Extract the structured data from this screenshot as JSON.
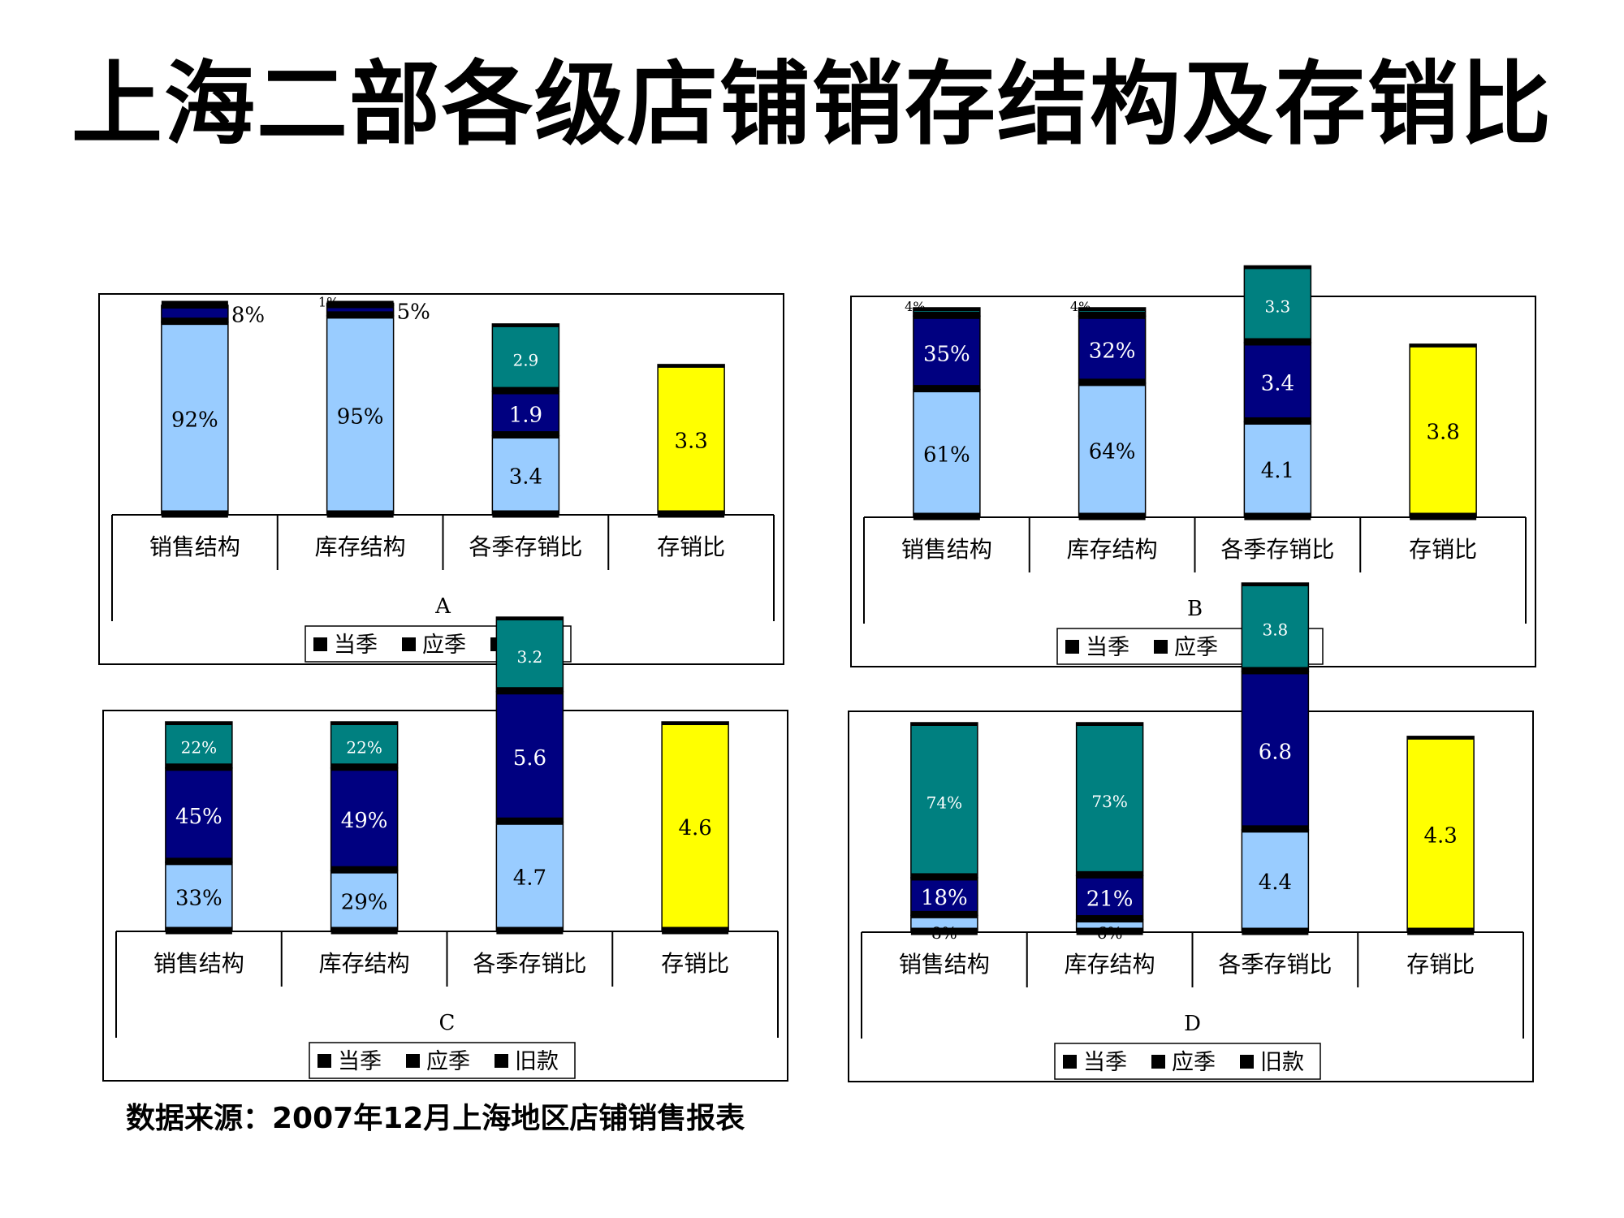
{
  "title": "上海二部各级店铺销存结构及存销比",
  "source_note": "数据来源：2007年12月上海地区店铺销售报表",
  "colors": {
    "current": "#99CCFF",
    "due": "#000080",
    "old": "#008080",
    "total": "#FFFF00",
    "divider": "#000000"
  },
  "legend_labels": [
    "当季",
    "应季",
    "旧款"
  ],
  "chart_data": [
    {
      "type": "bar",
      "stacked": true,
      "title": "A",
      "categories": [
        "销售结构",
        "库存结构",
        "各季存销比",
        "存销比"
      ],
      "series": [
        {
          "name": "当季",
          "values": [
            92,
            95,
            3.4,
            3.3
          ],
          "labels": [
            "92%",
            "95%",
            "3.4",
            "3.3"
          ]
        },
        {
          "name": "应季",
          "values": [
            8,
            5,
            1.9,
            null
          ],
          "labels": [
            "8%",
            "5%",
            "1.9",
            ""
          ]
        },
        {
          "name": "旧款",
          "values": [
            0,
            1,
            2.9,
            null
          ],
          "labels": [
            "",
            "1%",
            "2.9",
            ""
          ]
        }
      ]
    },
    {
      "type": "bar",
      "stacked": true,
      "title": "B",
      "categories": [
        "销售结构",
        "库存结构",
        "各季存销比",
        "存销比"
      ],
      "series": [
        {
          "name": "当季",
          "values": [
            61,
            64,
            4.1,
            3.8
          ],
          "labels": [
            "61%",
            "64%",
            "4.1",
            "3.8"
          ]
        },
        {
          "name": "应季",
          "values": [
            35,
            32,
            3.4,
            null
          ],
          "labels": [
            "35%",
            "32%",
            "3.4",
            ""
          ]
        },
        {
          "name": "旧款",
          "values": [
            4,
            4,
            3.3,
            null
          ],
          "labels": [
            "4%",
            "4%",
            "3.3",
            ""
          ]
        }
      ]
    },
    {
      "type": "bar",
      "stacked": true,
      "title": "C",
      "categories": [
        "销售结构",
        "库存结构",
        "各季存销比",
        "存销比"
      ],
      "series": [
        {
          "name": "当季",
          "values": [
            33,
            29,
            4.7,
            4.6
          ],
          "labels": [
            "33%",
            "29%",
            "4.7",
            "4.6"
          ]
        },
        {
          "name": "应季",
          "values": [
            45,
            49,
            5.6,
            null
          ],
          "labels": [
            "45%",
            "49%",
            "5.6",
            ""
          ]
        },
        {
          "name": "旧款",
          "values": [
            22,
            22,
            3.2,
            null
          ],
          "labels": [
            "22%",
            "22%",
            "3.2",
            ""
          ]
        }
      ]
    },
    {
      "type": "bar",
      "stacked": true,
      "title": "D",
      "categories": [
        "销售结构",
        "库存结构",
        "各季存销比",
        "存销比"
      ],
      "series": [
        {
          "name": "当季",
          "values": [
            8,
            6,
            4.4,
            4.3
          ],
          "labels": [
            "8%",
            "6%",
            "4.4",
            "4.3"
          ]
        },
        {
          "name": "应季",
          "values": [
            18,
            21,
            6.8,
            null
          ],
          "labels": [
            "18%",
            "21%",
            "6.8",
            ""
          ]
        },
        {
          "name": "旧款",
          "values": [
            74,
            73,
            3.8,
            null
          ],
          "labels": [
            "74%",
            "73%",
            "3.8",
            ""
          ]
        }
      ]
    }
  ]
}
